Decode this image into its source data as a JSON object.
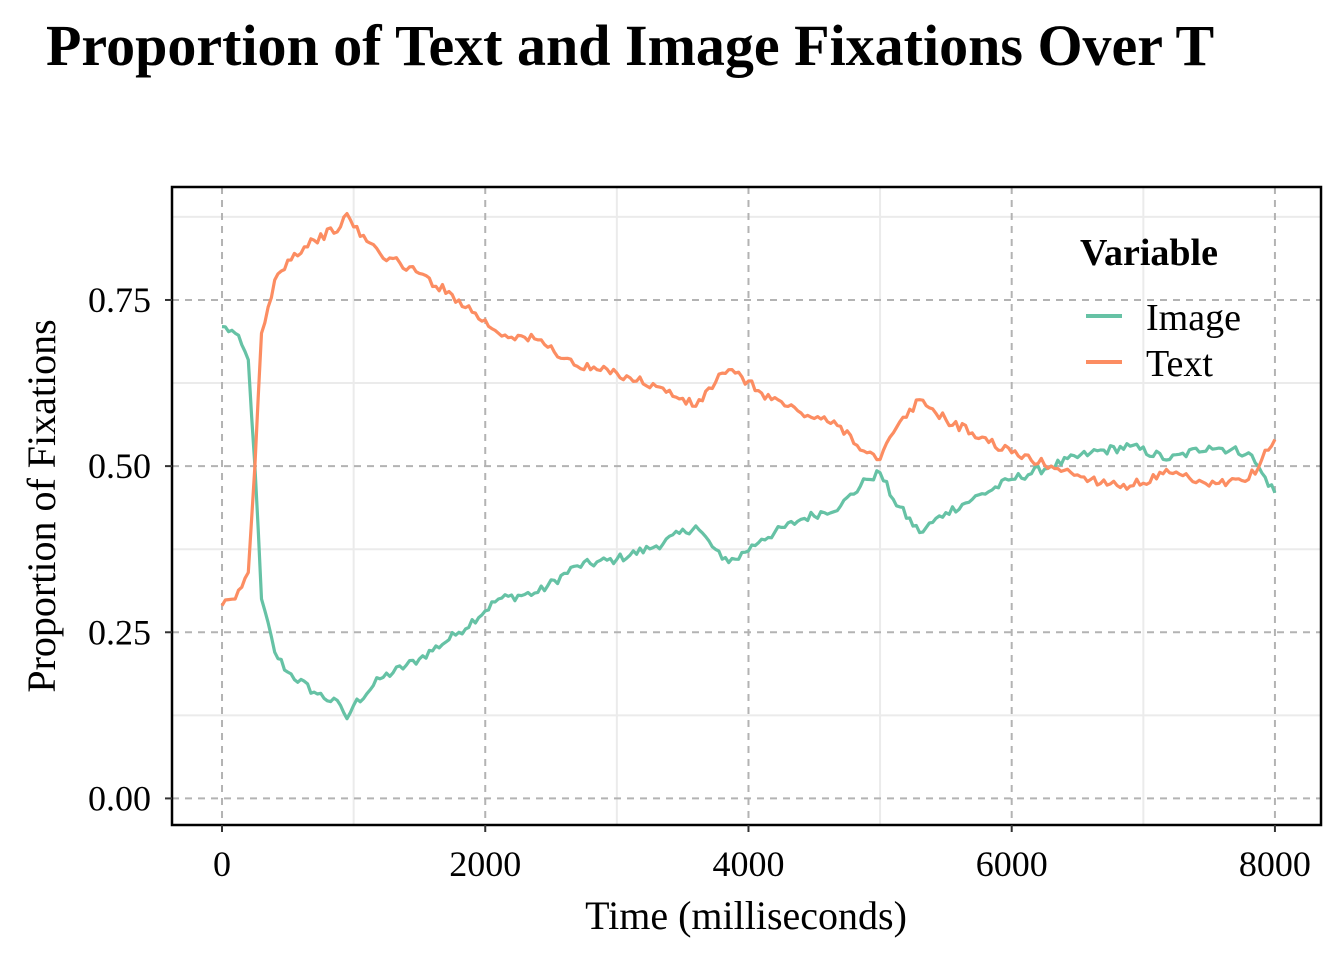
{
  "chart_data": {
    "type": "line",
    "title": "Proportion of Text and Image Fixations Over T",
    "xlabel": "Time (milliseconds)",
    "ylabel": "Proportion of Fixations",
    "xlim": [
      -380,
      8350
    ],
    "ylim": [
      -0.04,
      0.92
    ],
    "x_ticks": [
      0,
      2000,
      4000,
      6000,
      8000
    ],
    "x_tick_labels": [
      "0",
      "2000",
      "4000",
      "6000",
      "8000"
    ],
    "y_ticks": [
      0,
      0.25,
      0.5,
      0.75
    ],
    "y_tick_labels": [
      "0.00",
      "0.25",
      "0.50",
      "0.75"
    ],
    "grid": true,
    "legend": {
      "title": "Variable",
      "position": "top-right"
    },
    "x": [
      0,
      100,
      200,
      250,
      300,
      400,
      500,
      700,
      900,
      950,
      1000,
      1200,
      1500,
      1800,
      2100,
      2400,
      2700,
      3000,
      3300,
      3600,
      3800,
      3900,
      4100,
      4400,
      4700,
      4900,
      5000,
      5100,
      5300,
      5500,
      5700,
      6000,
      6300,
      6600,
      6900,
      7200,
      7500,
      7800,
      7900,
      8000
    ],
    "series": [
      {
        "name": "Image",
        "color": "#66C2A5",
        "values": [
          0.71,
          0.7,
          0.66,
          0.5,
          0.3,
          0.22,
          0.19,
          0.16,
          0.14,
          0.12,
          0.14,
          0.18,
          0.21,
          0.25,
          0.3,
          0.31,
          0.35,
          0.36,
          0.38,
          0.41,
          0.36,
          0.36,
          0.39,
          0.42,
          0.44,
          0.48,
          0.49,
          0.45,
          0.4,
          0.43,
          0.45,
          0.48,
          0.5,
          0.52,
          0.53,
          0.51,
          0.53,
          0.52,
          0.49,
          0.46
        ]
      },
      {
        "name": "Text",
        "color": "#FC8D62",
        "values": [
          0.29,
          0.3,
          0.34,
          0.5,
          0.7,
          0.78,
          0.81,
          0.84,
          0.86,
          0.88,
          0.86,
          0.82,
          0.79,
          0.75,
          0.7,
          0.69,
          0.65,
          0.64,
          0.62,
          0.59,
          0.64,
          0.64,
          0.61,
          0.58,
          0.56,
          0.52,
          0.51,
          0.55,
          0.6,
          0.57,
          0.55,
          0.52,
          0.5,
          0.48,
          0.47,
          0.49,
          0.47,
          0.48,
          0.51,
          0.54
        ]
      }
    ]
  }
}
